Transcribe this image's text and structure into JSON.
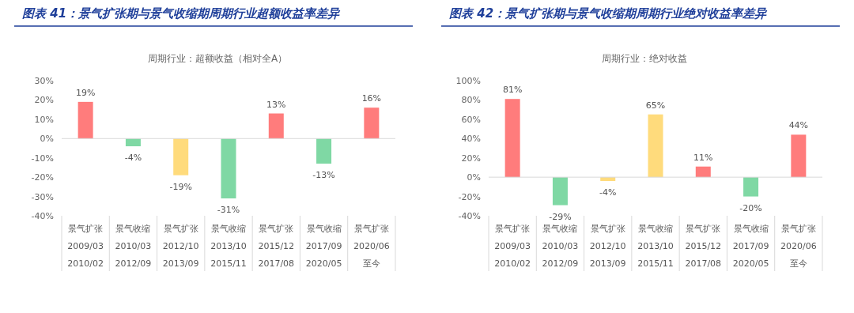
{
  "chart_data": [
    {
      "type": "bar",
      "title": "图表 41：景气扩张期与景气收缩期周期行业超额收益率差异",
      "subtitle": "周期行业：超额收益（相对全A）",
      "categories": [
        "景气扩张\n2009/03\n2010/02",
        "景气收缩\n2010/03\n2012/09",
        "景气扩张\n2012/10\n2013/09",
        "景气收缩\n2013/10\n2015/11",
        "景气扩张\n2015/12\n2017/08",
        "景气收缩\n2017/09\n2020/05",
        "景气扩张\n2020/06\n至今"
      ],
      "values": [
        19,
        -4,
        -19,
        -31,
        13,
        -13,
        16
      ],
      "value_labels": [
        "19%",
        "-4%",
        "-19%",
        "-31%",
        "13%",
        "-13%",
        "16%"
      ],
      "colors": [
        "#ff7c7c",
        "#7fd8a4",
        "#ffdb7c",
        "#7fd8a4",
        "#ff7c7c",
        "#7fd8a4",
        "#ff7c7c"
      ],
      "ylim": [
        -40,
        30
      ],
      "yticks": [
        {
          "value": -40,
          "label": "-40%"
        },
        {
          "value": -30,
          "label": "-30%"
        },
        {
          "value": -20,
          "label": "-20%"
        },
        {
          "value": -10,
          "label": "-10%"
        },
        {
          "value": 0,
          "label": "0%"
        },
        {
          "value": 10,
          "label": "10%"
        },
        {
          "value": 20,
          "label": "20%"
        },
        {
          "value": 30,
          "label": "30%"
        }
      ],
      "legend": false
    },
    {
      "type": "bar",
      "title": "图表 42：景气扩张期与景气收缩期周期行业绝对收益率差异",
      "subtitle": "周期行业：绝对收益",
      "categories": [
        "景气扩张\n2009/03\n2010/02",
        "景气收缩\n2010/03\n2012/09",
        "景气扩张\n2012/10\n2013/09",
        "景气收缩\n2013/10\n2015/11",
        "景气扩张\n2015/12\n2017/08",
        "景气收缩\n2017/09\n2020/05",
        "景气扩张\n2020/06\n至今"
      ],
      "values": [
        81,
        -29,
        -4,
        65,
        11,
        -20,
        44
      ],
      "value_labels": [
        "81%",
        "-29%",
        "-4%",
        "65%",
        "11%",
        "-20%",
        "44%"
      ],
      "colors": [
        "#ff7c7c",
        "#7fd8a4",
        "#ffdb7c",
        "#ffdb7c",
        "#ff7c7c",
        "#7fd8a4",
        "#ff7c7c"
      ],
      "ylim": [
        -40,
        100
      ],
      "yticks": [
        {
          "value": -40,
          "label": "-40%"
        },
        {
          "value": -20,
          "label": "-20%"
        },
        {
          "value": 0,
          "label": "0%"
        },
        {
          "value": 20,
          "label": "20%"
        },
        {
          "value": 40,
          "label": "40%"
        },
        {
          "value": 60,
          "label": "60%"
        },
        {
          "value": 80,
          "label": "80%"
        },
        {
          "value": 100,
          "label": "100%"
        }
      ],
      "legend": false
    }
  ]
}
